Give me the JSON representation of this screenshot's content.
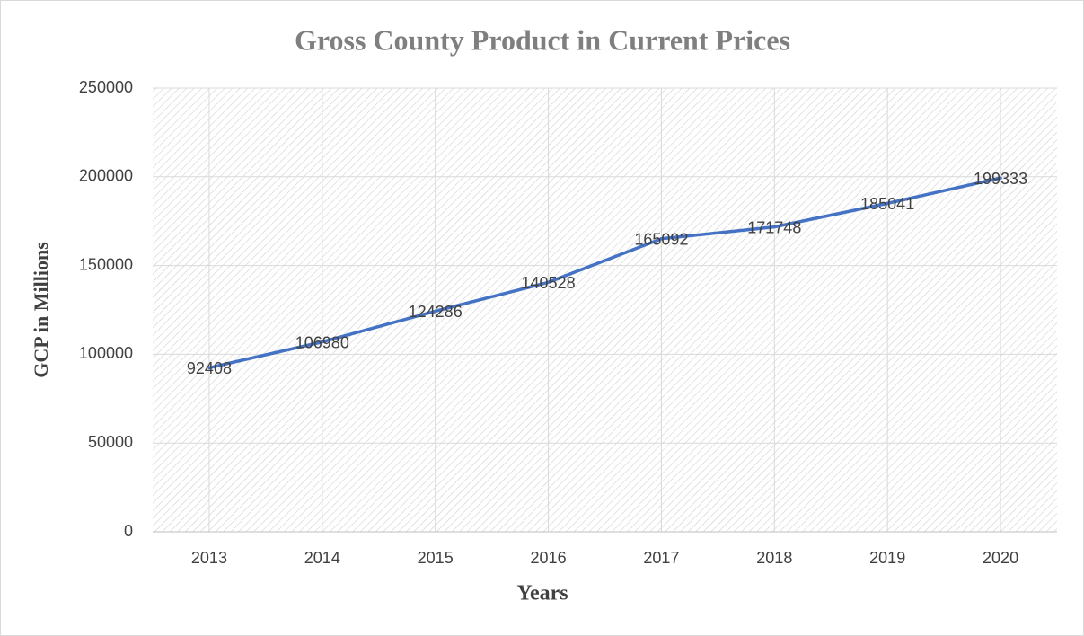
{
  "chart_data": {
    "type": "line",
    "title": "Gross County Product in Current Prices",
    "x_label": "Years",
    "y_label": "GCP in Millions",
    "categories": [
      "2013",
      "2014",
      "2015",
      "2016",
      "2017",
      "2018",
      "2019",
      "2020"
    ],
    "values": [
      92408,
      106980,
      124286,
      140528,
      165092,
      171748,
      185041,
      199333
    ],
    "color": "#4472c4",
    "ylim": [
      0,
      250000
    ],
    "yticks": [
      0,
      50000,
      100000,
      150000,
      200000,
      250000
    ],
    "grid": true
  }
}
